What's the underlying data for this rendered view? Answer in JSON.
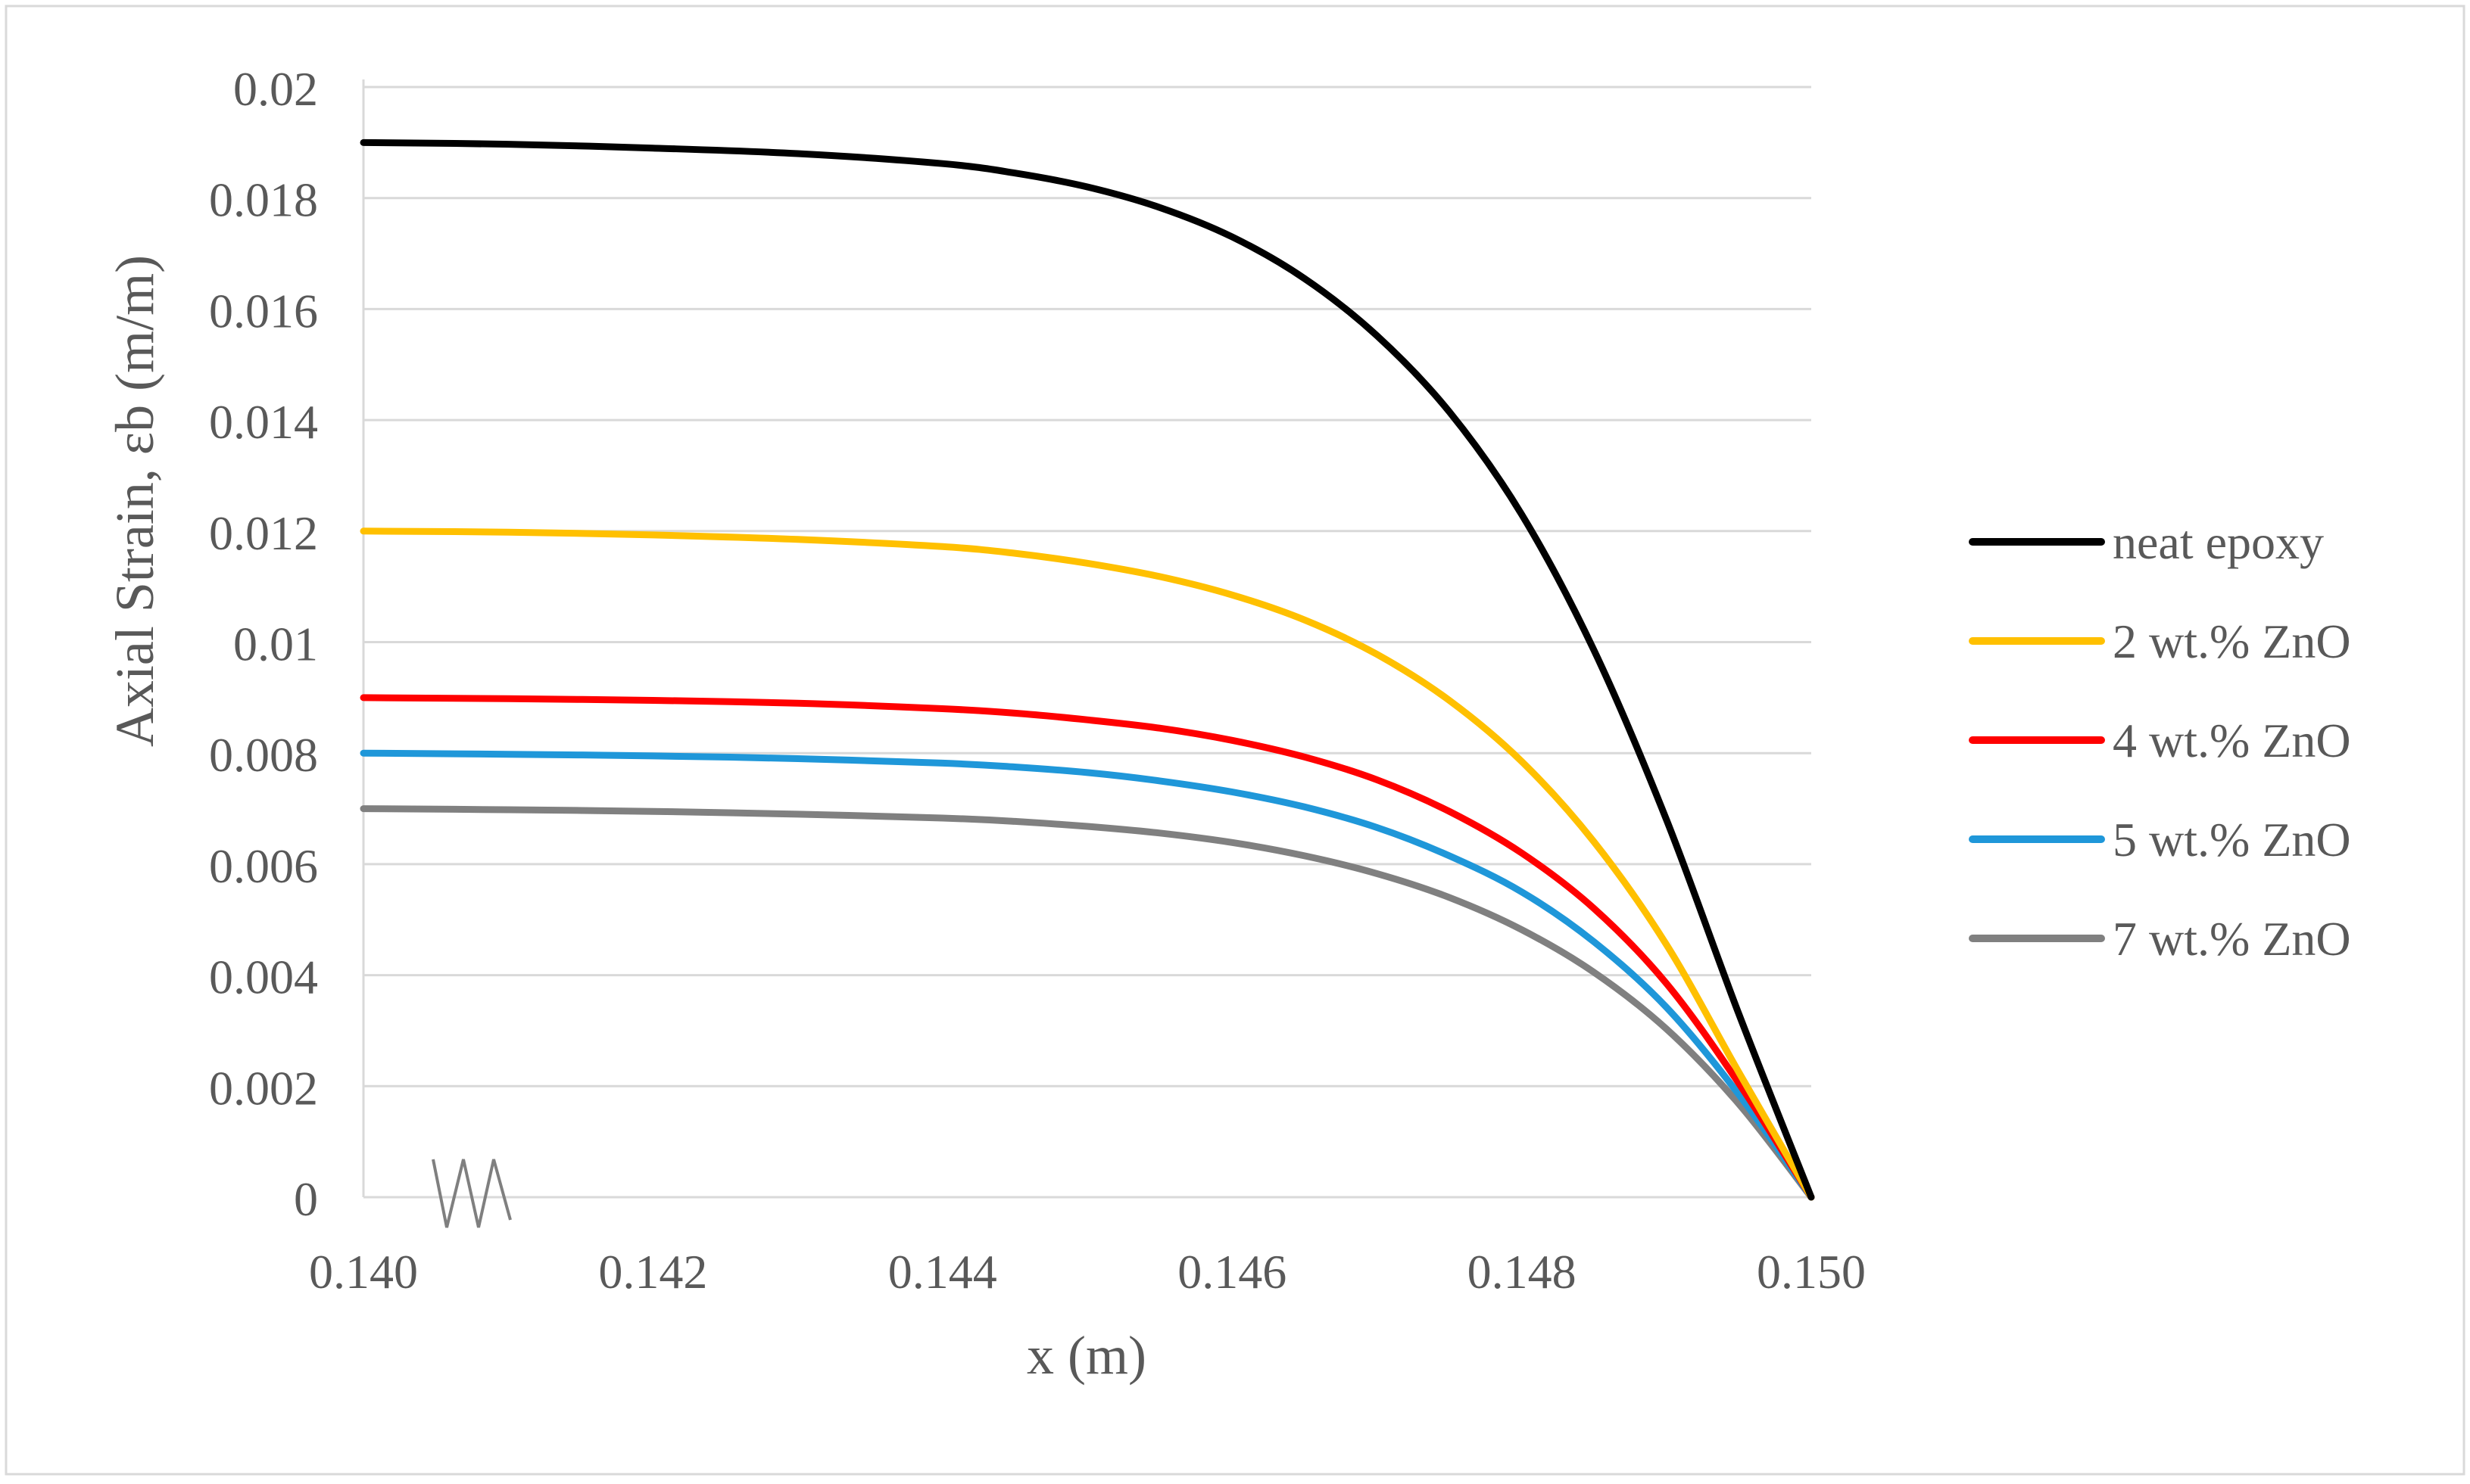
{
  "chart_data": {
    "type": "line",
    "xlabel": "x (m)",
    "ylabel": "Axial Strain, εb (m/m)",
    "xlim": [
      0.14,
      0.15
    ],
    "ylim": [
      0,
      0.02
    ],
    "x_ticks": [
      "0.140",
      "0.142",
      "0.144",
      "0.146",
      "0.148",
      "0.150"
    ],
    "x_tick_values": [
      0.14,
      0.142,
      0.144,
      0.146,
      0.148,
      0.15
    ],
    "y_ticks": [
      "0",
      "0.002",
      "0.004",
      "0.006",
      "0.008",
      "0.01",
      "0.012",
      "0.014",
      "0.016",
      "0.018",
      "0.02"
    ],
    "y_tick_values": [
      0,
      0.002,
      0.004,
      0.006,
      0.008,
      0.01,
      0.012,
      0.014,
      0.016,
      0.018,
      0.02
    ],
    "grid": "horizontal",
    "legend_position": "right",
    "axis_break": "x-axis near origin",
    "x": [
      0.14,
      0.141,
      0.142,
      0.143,
      0.144,
      0.1445,
      0.145,
      0.1455,
      0.146,
      0.1465,
      0.147,
      0.1475,
      0.148,
      0.1485,
      0.149,
      0.1495,
      0.15
    ],
    "series": [
      {
        "name": "neat epoxy",
        "color": "#000000",
        "values": [
          0.019,
          0.01897,
          0.0189,
          0.0188,
          0.01862,
          0.01845,
          0.0182,
          0.01783,
          0.0173,
          0.01655,
          0.01552,
          0.01415,
          0.0123,
          0.00985,
          0.0068,
          0.0033,
          0.0
        ]
      },
      {
        "name": "2 wt.% ZnO",
        "color": "#FFC000",
        "values": [
          0.012,
          0.01198,
          0.01193,
          0.01185,
          0.01172,
          0.0116,
          0.01142,
          0.01118,
          0.01085,
          0.0104,
          0.00978,
          0.00895,
          0.00785,
          0.0064,
          0.00455,
          0.00225,
          0.0
        ]
      },
      {
        "name": "4 wt.% ZnO",
        "color": "#FF0000",
        "values": [
          0.009,
          0.00898,
          0.00895,
          0.0089,
          0.0088,
          0.00872,
          0.0086,
          0.00845,
          0.00823,
          0.00793,
          0.00752,
          0.00695,
          0.0062,
          0.0052,
          0.00385,
          0.00205,
          0.0
        ]
      },
      {
        "name": "5 wt.% ZnO",
        "color": "#1F97D9",
        "values": [
          0.008,
          0.00798,
          0.00795,
          0.0079,
          0.00782,
          0.00775,
          0.00765,
          0.0075,
          0.0073,
          0.00703,
          0.00666,
          0.00615,
          0.0055,
          0.0046,
          0.00342,
          0.00185,
          0.0
        ]
      },
      {
        "name": "7 wt.% ZnO",
        "color": "#808080",
        "values": [
          0.007,
          0.00698,
          0.00695,
          0.0069,
          0.00683,
          0.00677,
          0.00668,
          0.00656,
          0.00639,
          0.00615,
          0.00583,
          0.0054,
          0.00482,
          0.00405,
          0.00303,
          0.00168,
          0.0
        ]
      }
    ]
  }
}
